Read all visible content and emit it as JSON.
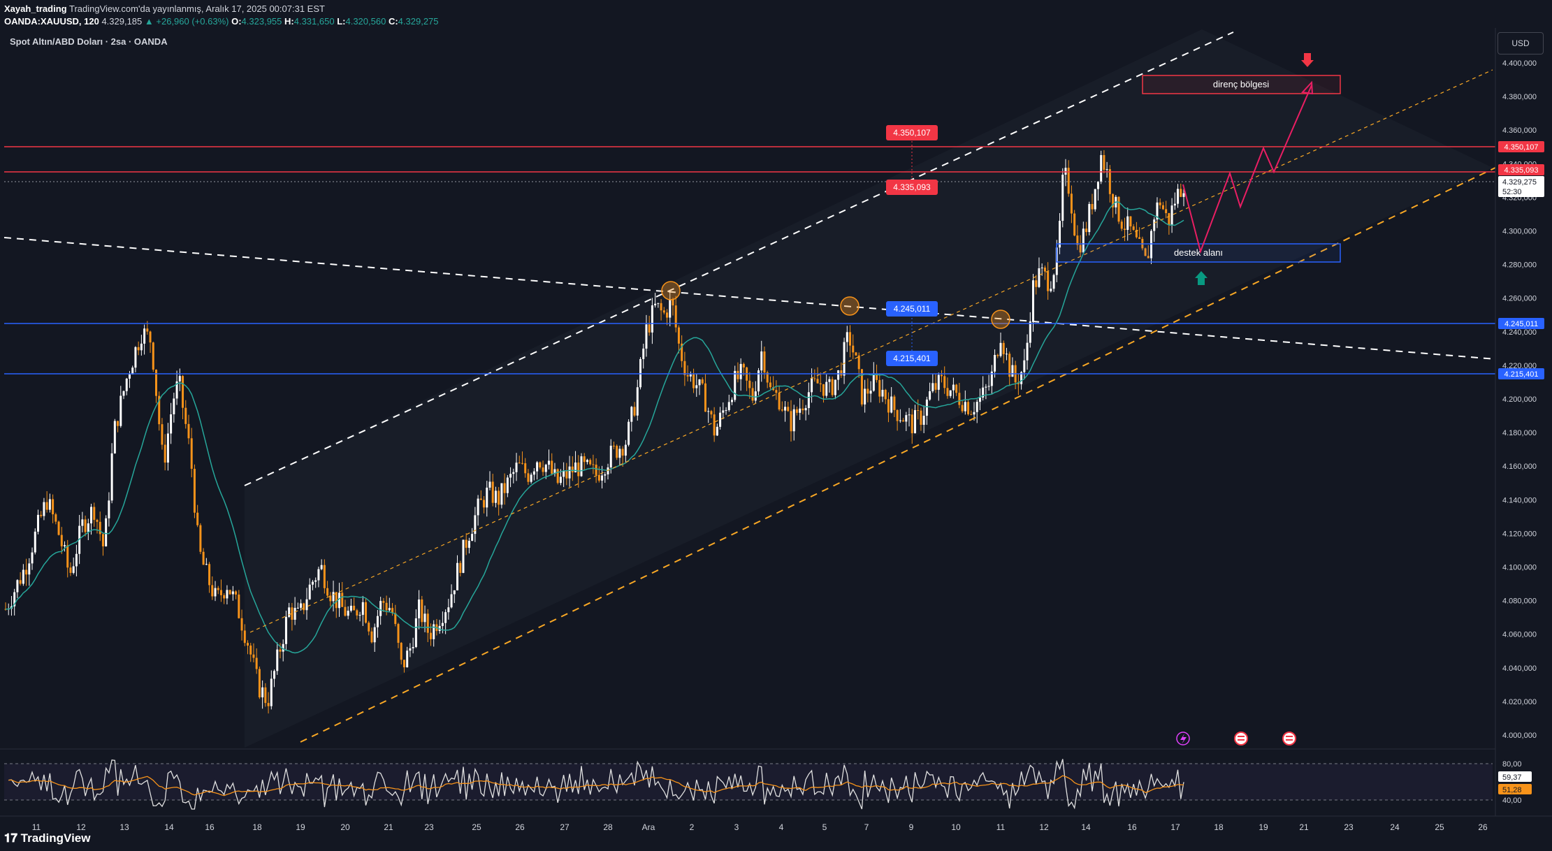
{
  "header": {
    "author": "Xayah_trading",
    "published": "TradingView.com'da yayınlanmış, Aralık 17, 2025 00:07:31 EST",
    "symbol_line": "OANDA:XAUUSD, 120",
    "last": "4.329,185",
    "change": "▲ +26,960 (+0.63%)",
    "o_label": "O:",
    "o": "4.323,955",
    "h_label": "H:",
    "h": "4.331,650",
    "l_label": "L:",
    "l": "4.320,560",
    "c_label": "C:",
    "c": "4.329,275"
  },
  "chart_title": "Spot Altın/ABD Doları · 2sa · OANDA",
  "currency_button": "USD",
  "footer_logo": "TradingView",
  "colors": {
    "background": "#131722",
    "up": "#ffffff",
    "down": "#f7931a",
    "resistance": "#f23645",
    "support": "#2962ff",
    "ma": "#26a69a",
    "channel": "#f9a825",
    "projection": "#e91e63"
  },
  "chart_data": {
    "type": "candlestick",
    "timeframe": "2sa",
    "y_range": [
      3995,
      4410
    ],
    "y_ticks": [
      "4.400,000",
      "4.380,000",
      "4.360,000",
      "4.340,000",
      "4.320,000",
      "4.300,000",
      "4.280,000",
      "4.260,000",
      "4.240,000",
      "4.220,000",
      "4.200,000",
      "4.180,000",
      "4.160,000",
      "4.140,000",
      "4.120,000",
      "4.100,000",
      "4.080,000",
      "4.060,000",
      "4.040,000",
      "4.020,000",
      "4.000,000"
    ],
    "x_ticks": [
      "11",
      "12",
      "13",
      "14",
      "16",
      "18",
      "19",
      "20",
      "21",
      "23",
      "25",
      "26",
      "27",
      "28",
      "Ara",
      "2",
      "3",
      "4",
      "5",
      "7",
      "9",
      "10",
      "11",
      "12",
      "14",
      "16",
      "17",
      "18",
      "19",
      "21",
      "23",
      "24",
      "25",
      "26"
    ],
    "price_path": [
      [
        0,
        4075
      ],
      [
        20,
        4100
      ],
      [
        35,
        4128
      ],
      [
        42,
        4140
      ],
      [
        55,
        4118
      ],
      [
        65,
        4095
      ],
      [
        78,
        4125
      ],
      [
        90,
        4135
      ],
      [
        100,
        4110
      ],
      [
        110,
        4180
      ],
      [
        124,
        4215
      ],
      [
        138,
        4240
      ],
      [
        148,
        4235
      ],
      [
        160,
        4160
      ],
      [
        170,
        4200
      ],
      [
        176,
        4210
      ],
      [
        188,
        4165
      ],
      [
        196,
        4110
      ],
      [
        204,
        4095
      ],
      [
        214,
        4080
      ],
      [
        225,
        4090
      ],
      [
        236,
        4075
      ],
      [
        246,
        4055
      ],
      [
        256,
        4030
      ],
      [
        266,
        4020
      ],
      [
        276,
        4045
      ],
      [
        288,
        4075
      ],
      [
        298,
        4070
      ],
      [
        310,
        4090
      ],
      [
        320,
        4100
      ],
      [
        330,
        4085
      ],
      [
        342,
        4075
      ],
      [
        352,
        4070
      ],
      [
        362,
        4080
      ],
      [
        372,
        4060
      ],
      [
        382,
        4080
      ],
      [
        392,
        4075
      ],
      [
        402,
        4040
      ],
      [
        410,
        4050
      ],
      [
        420,
        4075
      ],
      [
        430,
        4060
      ],
      [
        440,
        4070
      ],
      [
        450,
        4080
      ],
      [
        460,
        4100
      ],
      [
        470,
        4120
      ],
      [
        480,
        4135
      ],
      [
        490,
        4145
      ],
      [
        500,
        4140
      ],
      [
        510,
        4150
      ],
      [
        520,
        4160
      ],
      [
        530,
        4155
      ],
      [
        540,
        4165
      ],
      [
        550,
        4160
      ],
      [
        560,
        4150
      ],
      [
        570,
        4155
      ],
      [
        580,
        4160
      ],
      [
        590,
        4158
      ],
      [
        600,
        4155
      ],
      [
        612,
        4165
      ],
      [
        620,
        4170
      ],
      [
        630,
        4175
      ],
      [
        640,
        4200
      ],
      [
        650,
        4240
      ],
      [
        660,
        4255
      ],
      [
        668,
        4250
      ],
      [
        676,
        4258
      ],
      [
        684,
        4230
      ],
      [
        692,
        4215
      ],
      [
        700,
        4210
      ],
      [
        710,
        4200
      ],
      [
        720,
        4180
      ],
      [
        730,
        4195
      ],
      [
        740,
        4210
      ],
      [
        748,
        4215
      ],
      [
        758,
        4200
      ],
      [
        768,
        4230
      ],
      [
        776,
        4205
      ],
      [
        786,
        4200
      ],
      [
        796,
        4185
      ],
      [
        806,
        4195
      ],
      [
        816,
        4205
      ],
      [
        826,
        4210
      ],
      [
        836,
        4205
      ],
      [
        846,
        4215
      ],
      [
        856,
        4238
      ],
      [
        862,
        4225
      ],
      [
        870,
        4200
      ],
      [
        880,
        4210
      ],
      [
        890,
        4205
      ],
      [
        900,
        4195
      ],
      [
        910,
        4190
      ],
      [
        920,
        4185
      ],
      [
        930,
        4190
      ],
      [
        940,
        4205
      ],
      [
        950,
        4210
      ],
      [
        960,
        4205
      ],
      [
        970,
        4200
      ],
      [
        980,
        4195
      ],
      [
        990,
        4200
      ],
      [
        1000,
        4210
      ],
      [
        1010,
        4240
      ],
      [
        1018,
        4220
      ],
      [
        1025,
        4210
      ],
      [
        1035,
        4220
      ],
      [
        1042,
        4265
      ],
      [
        1050,
        4275
      ],
      [
        1060,
        4270
      ],
      [
        1068,
        4285
      ],
      [
        1074,
        4335
      ],
      [
        1080,
        4325
      ],
      [
        1088,
        4290
      ],
      [
        1096,
        4300
      ],
      [
        1104,
        4320
      ],
      [
        1112,
        4345
      ],
      [
        1118,
        4335
      ],
      [
        1126,
        4315
      ],
      [
        1134,
        4305
      ],
      [
        1142,
        4300
      ],
      [
        1150,
        4290
      ],
      [
        1158,
        4280
      ],
      [
        1166,
        4310
      ],
      [
        1172,
        4318
      ],
      [
        1180,
        4305
      ],
      [
        1188,
        4320
      ],
      [
        1196,
        4329
      ]
    ]
  },
  "levels": [
    {
      "label": "4.350,107",
      "kind": "resistance",
      "price": 4350.107
    },
    {
      "label": "4.335,093",
      "kind": "resistance",
      "price": 4335.093
    },
    {
      "label": "4.245,011",
      "kind": "support",
      "price": 4245.011
    },
    {
      "label": "4.215,401",
      "kind": "support",
      "price": 4215.401
    }
  ],
  "current_price": {
    "label": "4.329,275",
    "countdown": "52:30"
  },
  "zones": {
    "resistance_zone": "direnç bölgesi",
    "support_zone": "destek alanı"
  },
  "rsi": {
    "ticks": [
      "80,00",
      "40,00"
    ],
    "rsi_value": "59,37",
    "ma_value": "51,28"
  }
}
